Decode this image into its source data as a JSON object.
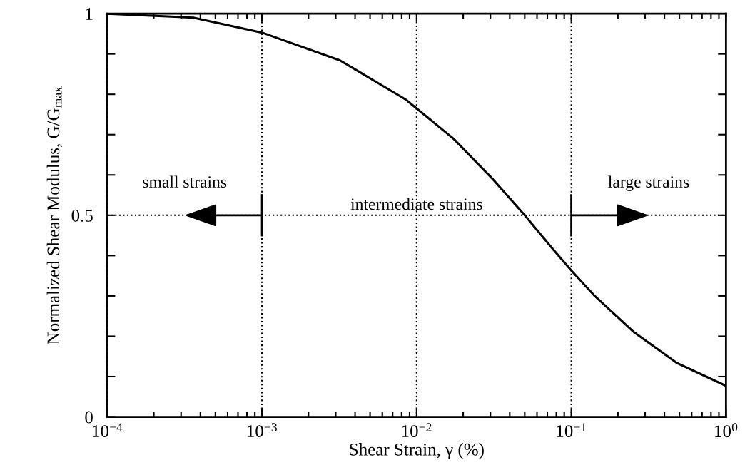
{
  "chart_data": {
    "type": "line",
    "xlabel": "Shear Strain, γ (%)",
    "ylabel": "Normalized Shear Modulus, G/G$_{max}$",
    "log": "x",
    "grid": "x",
    "line_style": "solid",
    "marker": "none",
    "xlim": [
      0.0001,
      1
    ],
    "ylim": [
      0,
      1
    ],
    "xticks": [
      {
        "value": 0.0001,
        "label": "10$^{−4}$"
      },
      {
        "value": 0.001,
        "label": "10$^{−3}$"
      },
      {
        "value": 0.01,
        "label": "10$^{−2}$"
      },
      {
        "value": 0.1,
        "label": "10$^{−1}$"
      },
      {
        "value": 1,
        "label": "10$^{0}$"
      }
    ],
    "yticks": [
      0,
      {
        "value": 0.1,
        "label": null
      },
      {
        "value": 0.2,
        "label": null
      },
      {
        "value": 0.3,
        "label": null
      },
      {
        "value": 0.4,
        "label": null
      },
      0.5,
      {
        "value": 0.6,
        "label": null
      },
      {
        "value": 0.7,
        "label": null
      },
      {
        "value": 0.8,
        "label": null
      },
      {
        "value": 0.9,
        "label": null
      },
      1
    ],
    "series": [
      {
        "color": "#000000",
        "x": [
          0.0001,
          0.00036,
          0.001,
          0.0032,
          0.0085,
          0.01,
          0.0173,
          0.031,
          0.05,
          0.076,
          0.1,
          0.14,
          0.256,
          0.48,
          1
        ],
        "values": [
          1.0,
          0.99,
          0.953,
          0.884,
          0.787,
          0.765,
          0.69,
          0.59,
          0.5,
          0.416,
          0.363,
          0.302,
          0.209,
          0.134,
          0.077
        ]
      }
    ],
    "ref_lines": [
      {
        "axis": "y",
        "value": 0.5,
        "label": null,
        "color": "#000000",
        "line_style": "dotted"
      }
    ],
    "annotations": [
      "small strains",
      "intermediate strains",
      "large strains"
    ]
  }
}
